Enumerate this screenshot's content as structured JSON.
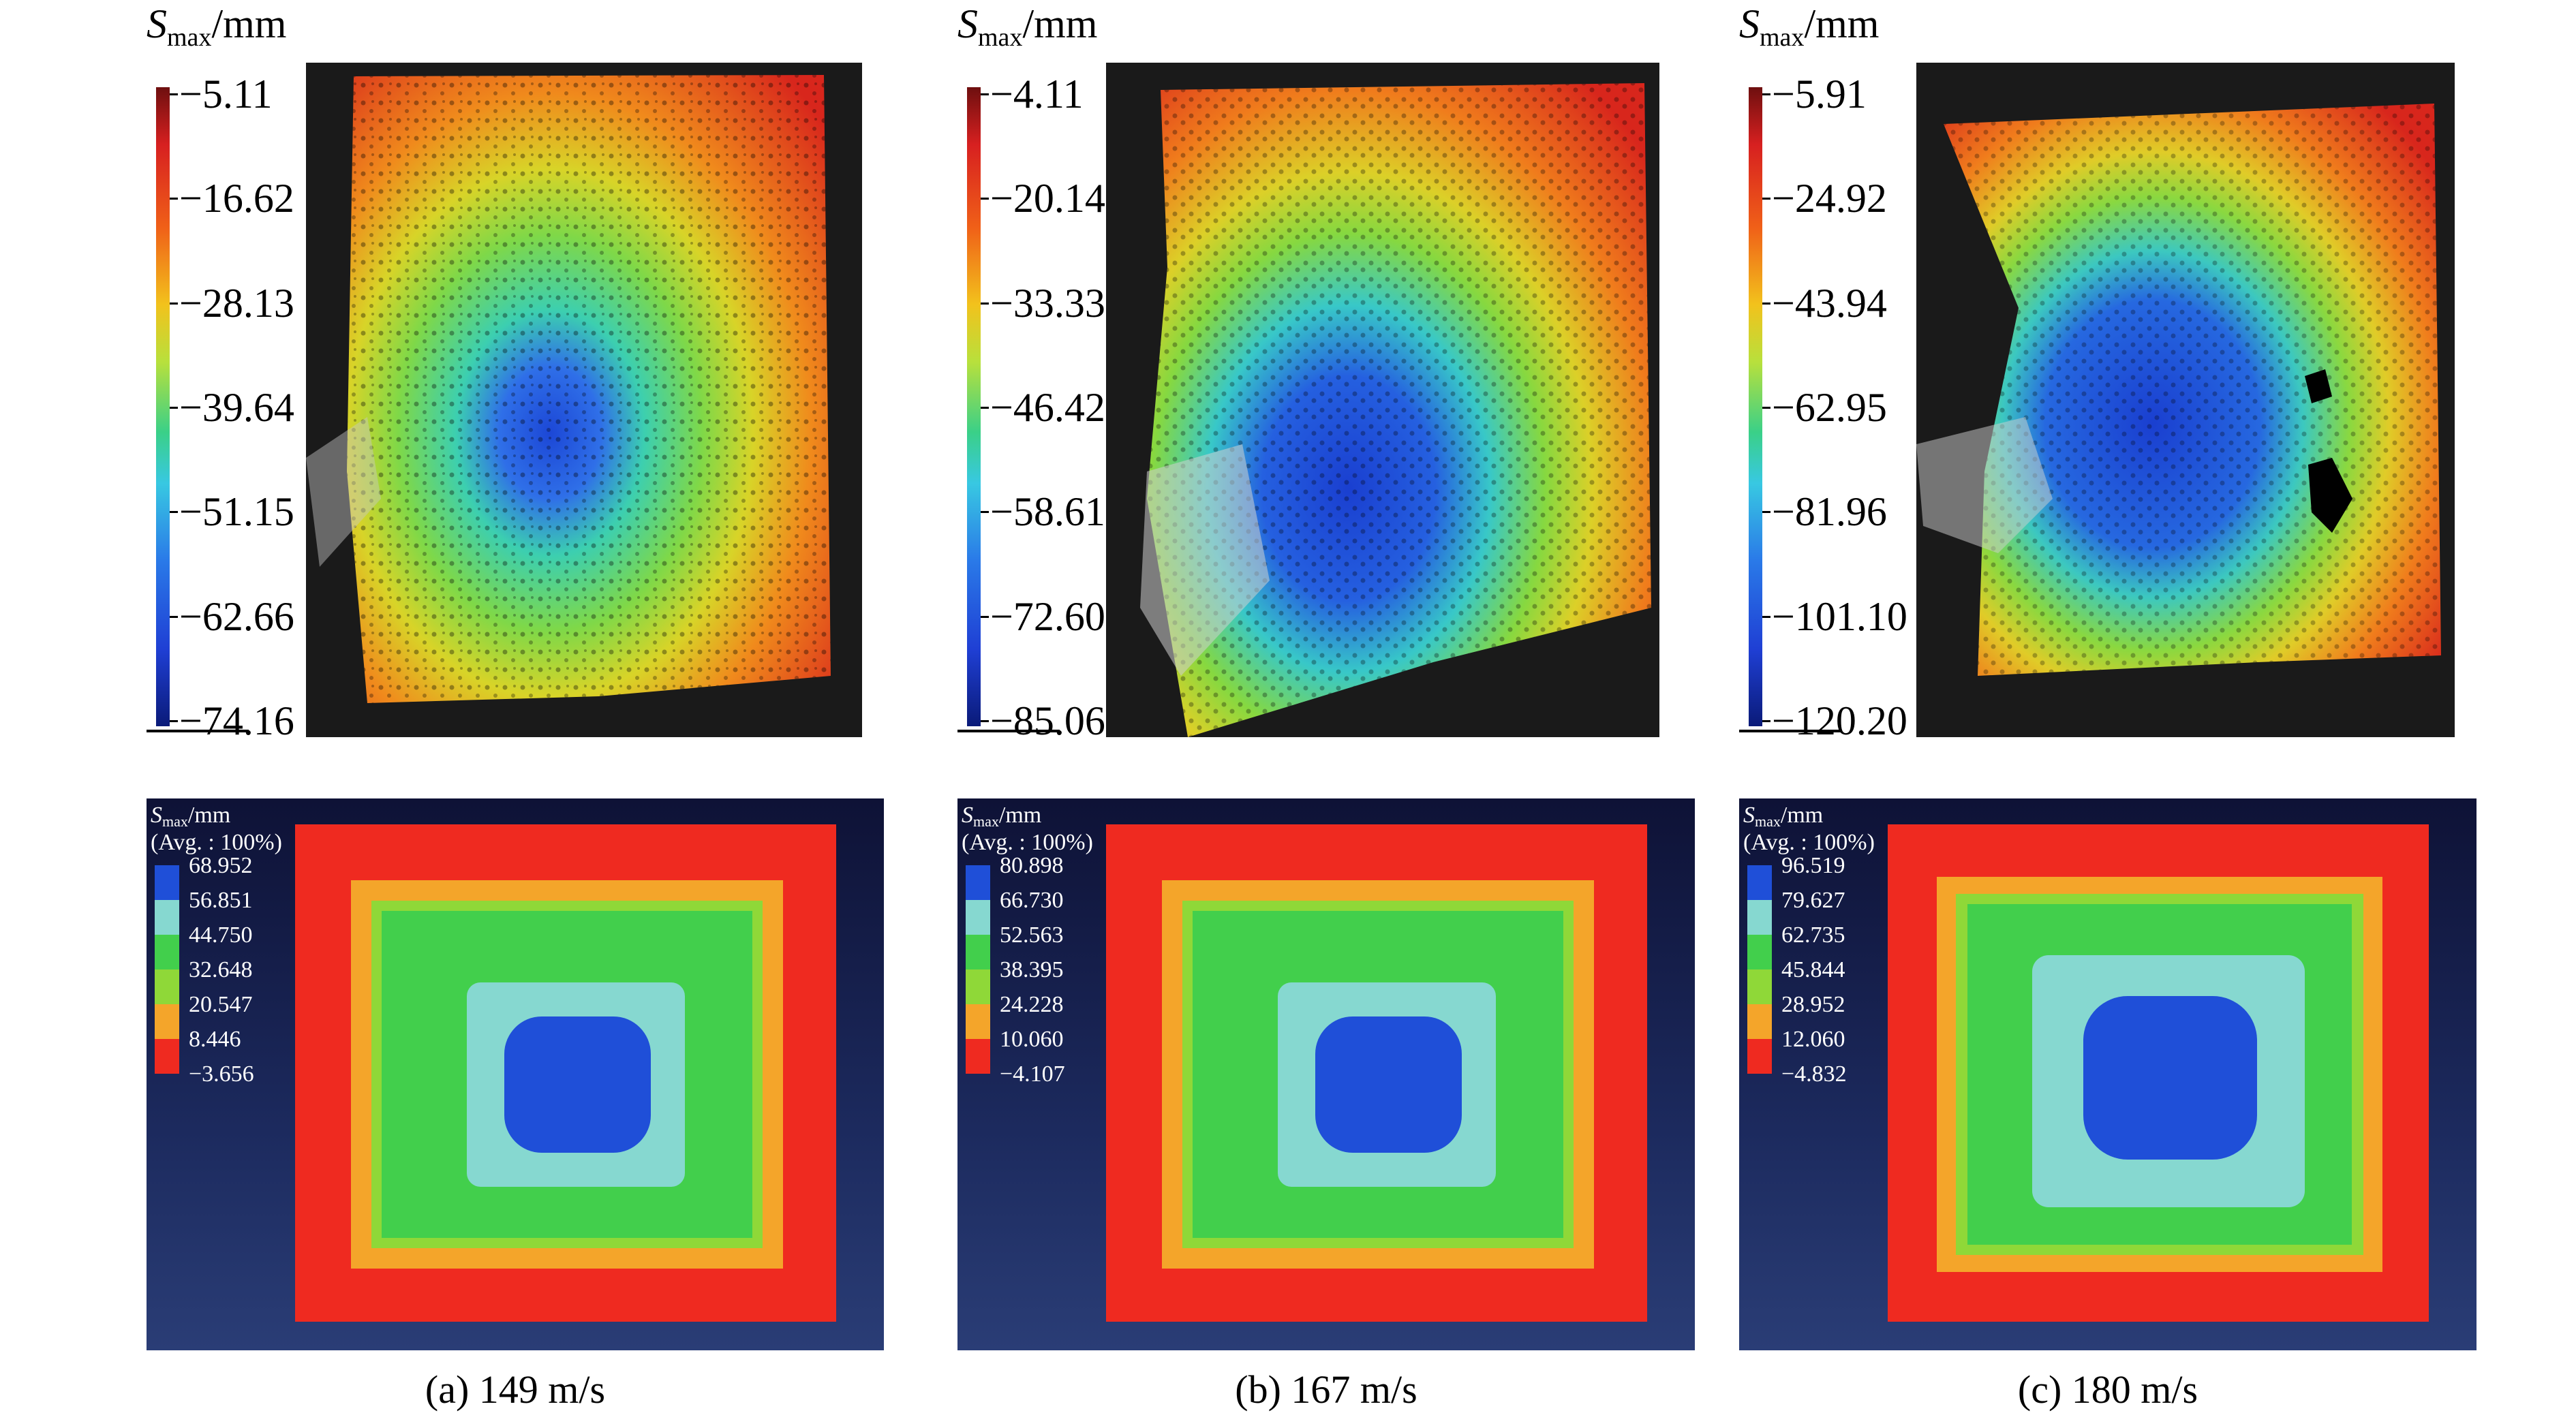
{
  "panels": [
    {
      "caption": "(a) 149 m/s",
      "exp_title": {
        "symbol": "S",
        "sub": "max",
        "unit": "/mm"
      },
      "exp_ticks": [
        "−5.11",
        "−16.62",
        "−28.13",
        "−39.64",
        "−51.15",
        "−62.66",
        "−74.16"
      ],
      "sim_title": {
        "symbol": "S",
        "sub": "max",
        "unit": "/mm"
      },
      "sim_avg": "(Avg. : 100%)",
      "sim_levels": [
        "68.952",
        "56.851",
        "44.750",
        "32.648",
        "20.547",
        "8.446"
      ],
      "sim_last": "−3.656"
    },
    {
      "caption": "(b) 167 m/s",
      "exp_title": {
        "symbol": "S",
        "sub": "max",
        "unit": "/mm"
      },
      "exp_ticks": [
        "−4.11",
        "−20.14",
        "−33.33",
        "−46.42",
        "−58.61",
        "−72.60",
        "−85.06"
      ],
      "sim_title": {
        "symbol": "S",
        "sub": "max",
        "unit": "/mm"
      },
      "sim_avg": "(Avg. : 100%)",
      "sim_levels": [
        "80.898",
        "66.730",
        "52.563",
        "38.395",
        "24.228",
        "10.060"
      ],
      "sim_last": "−4.107"
    },
    {
      "caption": "(c) 180 m/s",
      "exp_title": {
        "symbol": "S",
        "sub": "max",
        "unit": "/mm"
      },
      "exp_ticks": [
        "−5.91",
        "−24.92",
        "−43.94",
        "−62.95",
        "−81.96",
        "−101.10",
        "−120.20"
      ],
      "sim_title": {
        "symbol": "S",
        "sub": "max",
        "unit": "/mm"
      },
      "sim_avg": "(Avg. : 100%)",
      "sim_levels": [
        "96.519",
        "79.627",
        "62.735",
        "45.844",
        "28.952",
        "12.060"
      ],
      "sim_last": "−4.832"
    }
  ],
  "colors": {
    "legend_swatches": [
      "#1f4fd8",
      "#86d8d0",
      "#42cf4c",
      "#8fd838",
      "#f4a52a",
      "#ef2a20"
    ],
    "sim_background": "#1c2a5e"
  }
}
